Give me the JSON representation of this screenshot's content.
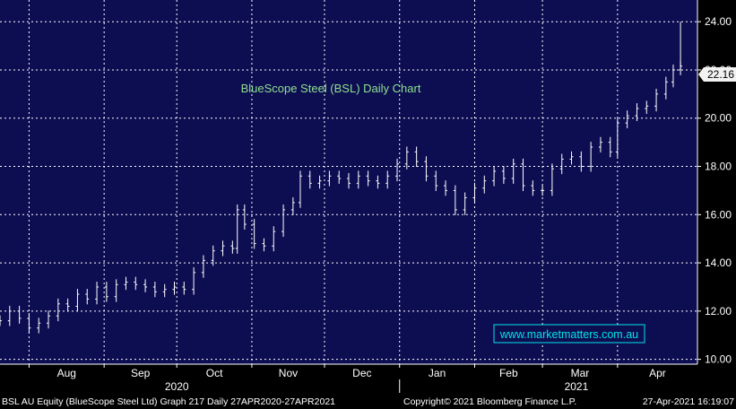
{
  "chart_data": {
    "type": "ohlc",
    "title": "BlueScope Steel (BSL) Daily Chart",
    "watermark": "www.marketmatters.com.au",
    "last_price_label": "22.16",
    "ylim": [
      9.8,
      24.9
    ],
    "y_ticks": [
      "10.00",
      "12.00",
      "14.00",
      "16.00",
      "18.00",
      "20.00",
      "22.00",
      "24.00"
    ],
    "y_tick_values": [
      10,
      12,
      14,
      16,
      18,
      20,
      22,
      24
    ],
    "x_ticks": [
      "Aug",
      "Sep",
      "Oct",
      "Nov",
      "Dec",
      "Jan",
      "Feb",
      "Mar",
      "Apr"
    ],
    "x_tick_dates": [
      "2020-08-01",
      "2020-09-01",
      "2020-10-01",
      "2020-11-01",
      "2020-12-01",
      "2021-01-01",
      "2021-02-01",
      "2021-03-01",
      "2021-04-01"
    ],
    "x_range": [
      "2020-07-20",
      "2021-05-04"
    ],
    "year_labels": [
      "2020",
      "2021"
    ],
    "year_label_dates": [
      "2020-10-01",
      "2021-03-15"
    ],
    "year_boundary_date": "2021-01-01",
    "grid": true,
    "colors": {
      "background": "#0d0d52",
      "grid": "#ffffff",
      "bars": "#ffffff",
      "title": "#8fe08f",
      "watermark": "#00e5e5",
      "last_price_box": "#f2f2f2"
    },
    "series": [
      {
        "points": [
          [
            "2020-07-20",
            11.6
          ],
          [
            "2020-07-24",
            12.0
          ],
          [
            "2020-07-28",
            11.7
          ],
          [
            "2020-08-01",
            11.3
          ],
          [
            "2020-08-05",
            11.5
          ],
          [
            "2020-08-09",
            11.8
          ],
          [
            "2020-08-13",
            12.3
          ],
          [
            "2020-08-17",
            12.2
          ],
          [
            "2020-08-21",
            12.7
          ],
          [
            "2020-08-25",
            12.5
          ],
          [
            "2020-08-29",
            13.0
          ],
          [
            "2020-09-02",
            12.6
          ],
          [
            "2020-09-06",
            13.1
          ],
          [
            "2020-09-10",
            13.2
          ],
          [
            "2020-09-14",
            13.1
          ],
          [
            "2020-09-18",
            13.0
          ],
          [
            "2020-09-22",
            12.8
          ],
          [
            "2020-09-26",
            12.9
          ],
          [
            "2020-09-30",
            13.0
          ],
          [
            "2020-10-04",
            12.9
          ],
          [
            "2020-10-08",
            13.6
          ],
          [
            "2020-10-12",
            14.1
          ],
          [
            "2020-10-16",
            14.5
          ],
          [
            "2020-10-20",
            14.7
          ],
          [
            "2020-10-24",
            14.6
          ],
          [
            "2020-10-26",
            16.2
          ],
          [
            "2020-10-29",
            15.6
          ],
          [
            "2020-11-02",
            14.8
          ],
          [
            "2020-11-06",
            14.7
          ],
          [
            "2020-11-10",
            15.3
          ],
          [
            "2020-11-14",
            16.2
          ],
          [
            "2020-11-18",
            16.5
          ],
          [
            "2020-11-21",
            17.6
          ],
          [
            "2020-11-25",
            17.3
          ],
          [
            "2020-11-29",
            17.4
          ],
          [
            "2020-12-03",
            17.6
          ],
          [
            "2020-12-07",
            17.5
          ],
          [
            "2020-12-11",
            17.3
          ],
          [
            "2020-12-15",
            17.6
          ],
          [
            "2020-12-19",
            17.4
          ],
          [
            "2020-12-23",
            17.3
          ],
          [
            "2020-12-27",
            17.6
          ],
          [
            "2020-12-31",
            18.1
          ],
          [
            "2021-01-04",
            18.6
          ],
          [
            "2021-01-08",
            18.2
          ],
          [
            "2021-01-12",
            17.6
          ],
          [
            "2021-01-16",
            17.2
          ],
          [
            "2021-01-20",
            17.0
          ],
          [
            "2021-01-24",
            16.2
          ],
          [
            "2021-01-28",
            16.7
          ],
          [
            "2021-02-01",
            17.1
          ],
          [
            "2021-02-05",
            17.4
          ],
          [
            "2021-02-09",
            17.8
          ],
          [
            "2021-02-13",
            17.5
          ],
          [
            "2021-02-17",
            18.1
          ],
          [
            "2021-02-21",
            17.2
          ],
          [
            "2021-02-25",
            17.0
          ],
          [
            "2021-03-01",
            17.0
          ],
          [
            "2021-03-05",
            17.9
          ],
          [
            "2021-03-09",
            18.3
          ],
          [
            "2021-03-13",
            18.4
          ],
          [
            "2021-03-17",
            18.0
          ],
          [
            "2021-03-21",
            18.8
          ],
          [
            "2021-03-25",
            19.0
          ],
          [
            "2021-03-29",
            18.6
          ],
          [
            "2021-04-01",
            19.8
          ],
          [
            "2021-04-05",
            20.1
          ],
          [
            "2021-04-09",
            20.4
          ],
          [
            "2021-04-13",
            20.5
          ],
          [
            "2021-04-17",
            21.0
          ],
          [
            "2021-04-21",
            21.5
          ],
          [
            "2021-04-24",
            22.0
          ],
          [
            "2021-04-27",
            22.16
          ]
        ]
      }
    ]
  },
  "footer": {
    "left": "BSL AU Equity (BlueScope Steel Ltd) Graph 217  Daily 27APR2020-27APR2021",
    "center": "Copyright© 2021 Bloomberg Finance L.P.",
    "right": "27-Apr-2021 16:19:07"
  }
}
